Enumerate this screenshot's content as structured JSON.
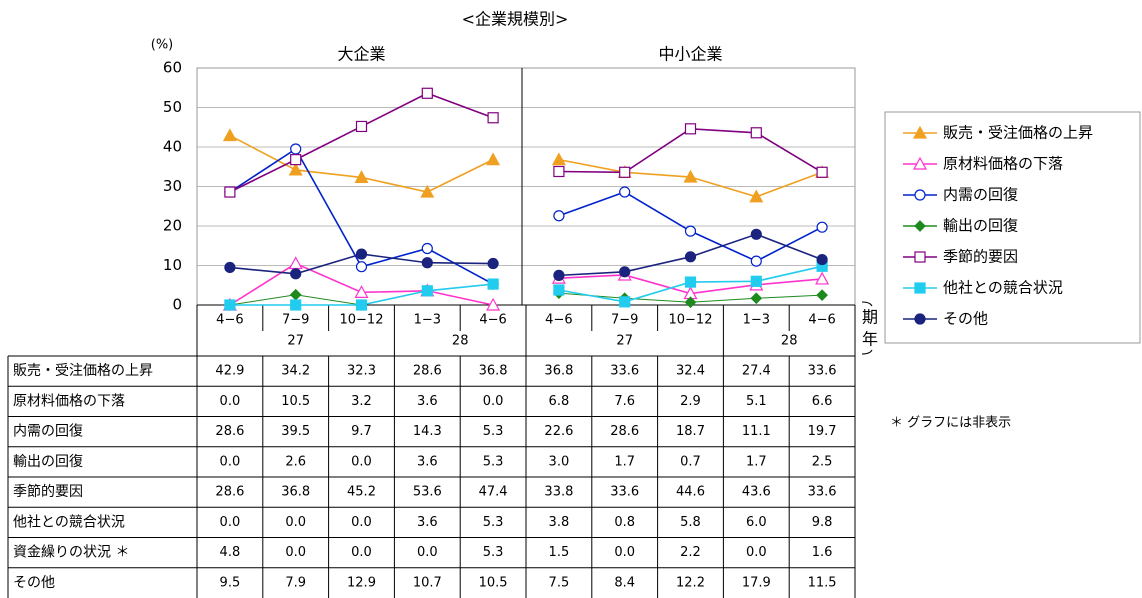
{
  "chart_data": {
    "type": "line",
    "title": "<企業規模別>",
    "y_unit": "(%)",
    "ylim": [
      0,
      60
    ],
    "yticks": [
      0,
      10,
      20,
      30,
      40,
      50,
      60
    ],
    "grid": true,
    "legend": "right",
    "x_axis_label_period": "期",
    "x_axis_label_year": "年",
    "note": "＊ グラフには非表示",
    "panels": [
      {
        "title": "大企業",
        "years": [
          {
            "year": "27",
            "periods": [
              "4−6",
              "7−9",
              "10−12"
            ]
          },
          {
            "year": "28",
            "periods": [
              "1−3",
              "4−6"
            ]
          }
        ]
      },
      {
        "title": "中小企業",
        "years": [
          {
            "year": "27",
            "periods": [
              "4−6",
              "7−9",
              "10−12"
            ]
          },
          {
            "year": "28",
            "periods": [
              "1−3",
              "4−6"
            ]
          }
        ]
      }
    ],
    "series": [
      {
        "name": "販売・受注価格の上昇",
        "color": "#f0a020",
        "marker": "triangle",
        "filled": true,
        "in_chart": true,
        "values": [
          42.9,
          34.2,
          32.3,
          28.6,
          36.8,
          36.8,
          33.6,
          32.4,
          27.4,
          33.6
        ],
        "value_labels": [
          "42.9",
          "34.2",
          "32.3",
          "28.6",
          "36.8",
          "36.8",
          "33.6",
          "32.4",
          "27.4",
          "33.6"
        ]
      },
      {
        "name": "原材料価格の下落",
        "color": "#ff33cc",
        "marker": "triangle",
        "filled": false,
        "in_chart": true,
        "values": [
          0,
          10.5,
          3.2,
          3.6,
          0,
          6.8,
          7.6,
          2.9,
          5.1,
          6.6
        ],
        "value_labels": [
          "0.0",
          "10.5",
          "3.2",
          "3.6",
          "0.0",
          "6.8",
          "7.6",
          "2.9",
          "5.1",
          "6.6"
        ]
      },
      {
        "name": "内需の回復",
        "color": "#0022cc",
        "marker": "circle",
        "filled": false,
        "in_chart": true,
        "values": [
          28.6,
          39.5,
          9.7,
          14.3,
          5.3,
          22.6,
          28.6,
          18.7,
          11.1,
          19.7
        ],
        "value_labels": [
          "28.6",
          "39.5",
          "9.7",
          "14.3",
          "5.3",
          "22.6",
          "28.6",
          "18.7",
          "11.1",
          "19.7"
        ]
      },
      {
        "name": "輸出の回復",
        "color": "#1e8a1e",
        "marker": "diamond",
        "filled": true,
        "in_chart": true,
        "values": [
          0,
          2.6,
          0,
          3.6,
          5.3,
          3.0,
          1.7,
          0.7,
          1.7,
          2.5
        ],
        "value_labels": [
          "0.0",
          "2.6",
          "0.0",
          "3.6",
          "5.3",
          "3.0",
          "1.7",
          "0.7",
          "1.7",
          "2.5"
        ]
      },
      {
        "name": "季節的要因",
        "color": "#800080",
        "marker": "square",
        "filled": false,
        "in_chart": true,
        "values": [
          28.6,
          36.8,
          45.2,
          53.6,
          47.4,
          33.8,
          33.6,
          44.6,
          43.6,
          33.6
        ],
        "value_labels": [
          "28.6",
          "36.8",
          "45.2",
          "53.6",
          "47.4",
          "33.8",
          "33.6",
          "44.6",
          "43.6",
          "33.6"
        ]
      },
      {
        "name": "他社との競合状況",
        "color": "#22ccee",
        "marker": "square",
        "filled": true,
        "in_chart": true,
        "values": [
          0,
          0,
          0,
          3.6,
          5.3,
          3.8,
          0.8,
          5.8,
          6.0,
          9.8
        ],
        "value_labels": [
          "0.0",
          "0.0",
          "0.0",
          "3.6",
          "5.3",
          "3.8",
          "0.8",
          "5.8",
          "6.0",
          "9.8"
        ]
      },
      {
        "name": "資金繰りの状況 ＊",
        "color": "#000000",
        "marker": "none",
        "filled": false,
        "in_chart": false,
        "values": [
          4.8,
          0,
          0,
          0,
          5.3,
          1.5,
          0,
          2.2,
          0,
          1.6
        ],
        "value_labels": [
          "4.8",
          "0.0",
          "0.0",
          "0.0",
          "5.3",
          "1.5",
          "0.0",
          "2.2",
          "0.0",
          "1.6"
        ]
      },
      {
        "name": "その他",
        "color": "#1a237e",
        "marker": "circle",
        "filled": true,
        "in_chart": true,
        "values": [
          9.5,
          7.9,
          12.9,
          10.7,
          10.5,
          7.5,
          8.4,
          12.2,
          17.9,
          11.5
        ],
        "value_labels": [
          "9.5",
          "7.9",
          "12.9",
          "10.7",
          "10.5",
          "7.5",
          "8.4",
          "12.2",
          "17.9",
          "11.5"
        ]
      }
    ]
  }
}
